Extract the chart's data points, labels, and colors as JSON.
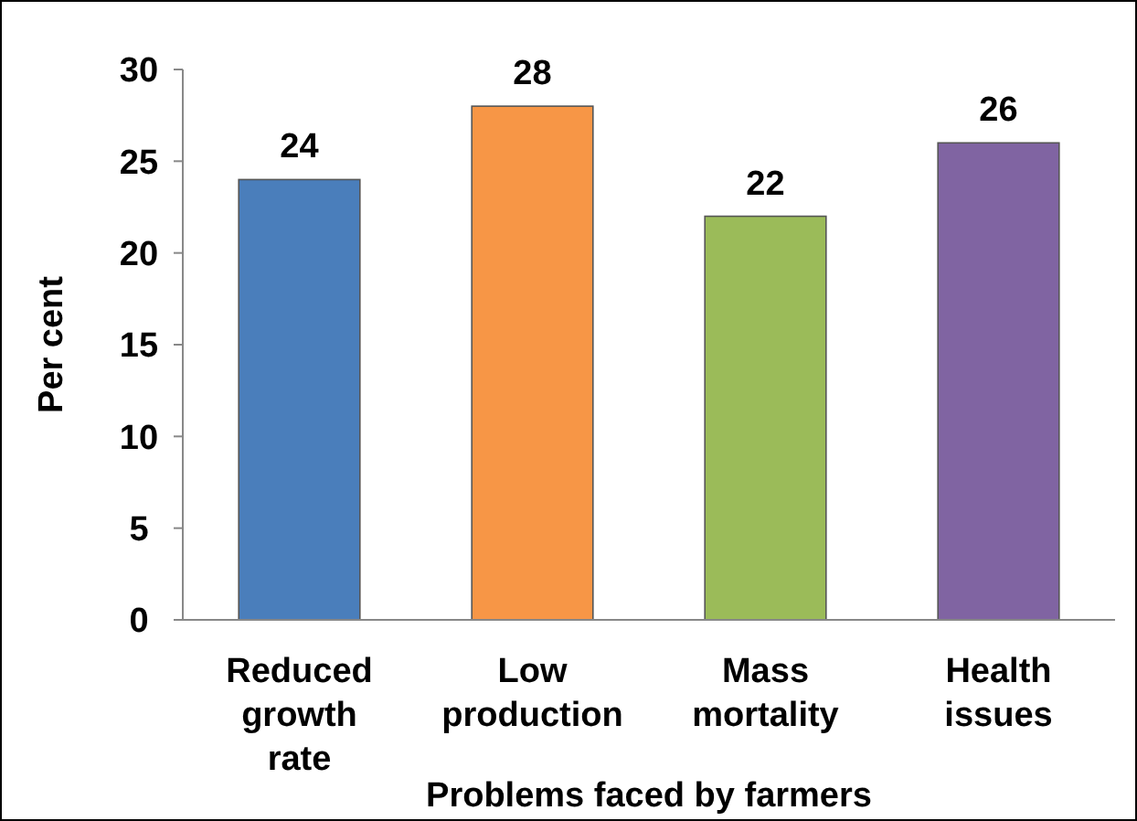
{
  "chart_data": {
    "type": "bar",
    "xlabel": "Problems faced by farmers",
    "ylabel": "Per cent",
    "categories": [
      "Reduced growth rate",
      "Low production",
      "Mass mortality",
      "Health issues"
    ],
    "values": [
      24,
      28,
      22,
      26
    ],
    "colors": [
      "#4a7ebb",
      "#f79646",
      "#9bbb59",
      "#8064a2"
    ],
    "ylim": [
      0,
      30
    ],
    "yticks": [
      0,
      5,
      10,
      15,
      20,
      25,
      30
    ],
    "grid": false,
    "data_labels": true
  }
}
